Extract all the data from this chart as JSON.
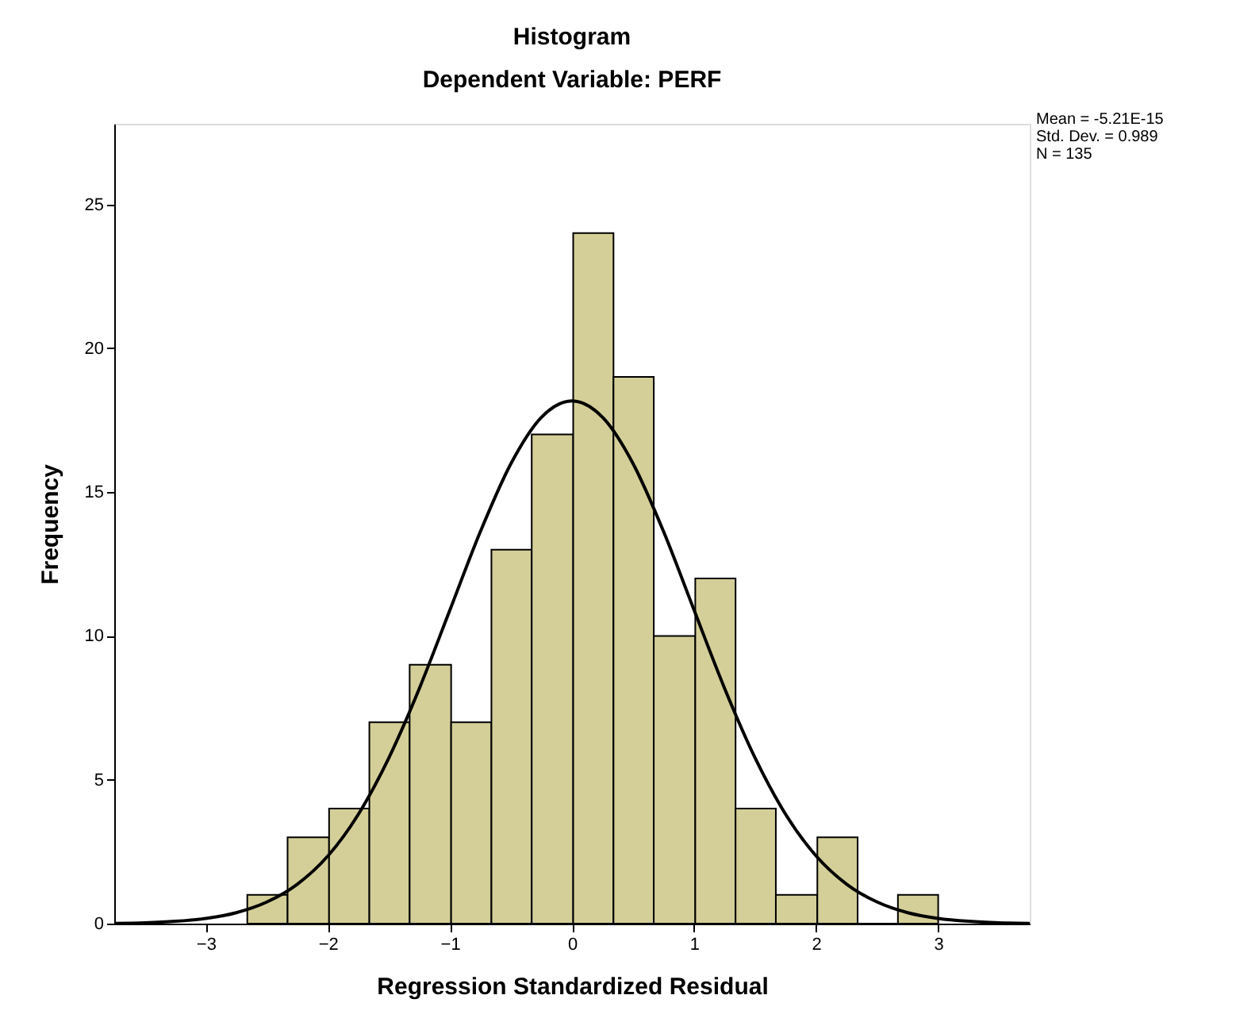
{
  "chart_data": {
    "type": "histogram",
    "title": "Histogram",
    "subtitle": "Dependent Variable: PERF",
    "xlabel": "Regression Standardized Residual",
    "ylabel": "Frequency",
    "bins": [
      -2.66,
      -2.33,
      -1.99,
      -1.66,
      -1.33,
      -0.99,
      -0.66,
      -0.33,
      0.01,
      0.34,
      0.67,
      1.01,
      1.34,
      1.67,
      2.01,
      2.34,
      2.67,
      3.0
    ],
    "values": [
      1,
      3,
      4,
      7,
      9,
      7,
      13,
      17,
      24,
      19,
      10,
      12,
      4,
      1,
      3,
      0,
      1
    ],
    "color": "#d4cf98",
    "series": [
      {
        "type": "line",
        "color": "#000000",
        "x": [
          -3.75,
          -3.5,
          -3.25,
          -3.0,
          -2.75,
          -2.5,
          -2.25,
          -2.0,
          -1.75,
          -1.5,
          -1.25,
          -1.0,
          -0.75,
          -0.5,
          -0.25,
          0,
          0.25,
          0.5,
          0.75,
          1.0,
          1.25,
          1.5,
          1.75,
          2.0,
          2.25,
          2.5,
          2.75,
          3.0,
          3.25,
          3.5,
          3.75
        ],
        "values": [
          0.01,
          0.03,
          0.08,
          0.18,
          0.38,
          0.75,
          1.37,
          2.35,
          3.8,
          5.76,
          8.18,
          10.9,
          13.63,
          15.99,
          17.6,
          18.17,
          17.6,
          15.99,
          13.63,
          10.9,
          8.18,
          5.76,
          3.8,
          2.35,
          1.37,
          0.75,
          0.38,
          0.18,
          0.08,
          0.03,
          0.01
        ]
      }
    ],
    "xlim": [
      -3.75,
      3.75
    ],
    "xticks": [
      -3,
      -2,
      -1,
      0,
      1,
      2,
      3
    ],
    "ylim": [
      0,
      27.8
    ],
    "yticks": [
      0,
      5,
      10,
      15,
      20,
      25
    ],
    "grid": false,
    "annotations": [
      "Mean = -5.21E-15",
      "Std. Dev. = 0.989",
      "N = 135"
    ]
  }
}
